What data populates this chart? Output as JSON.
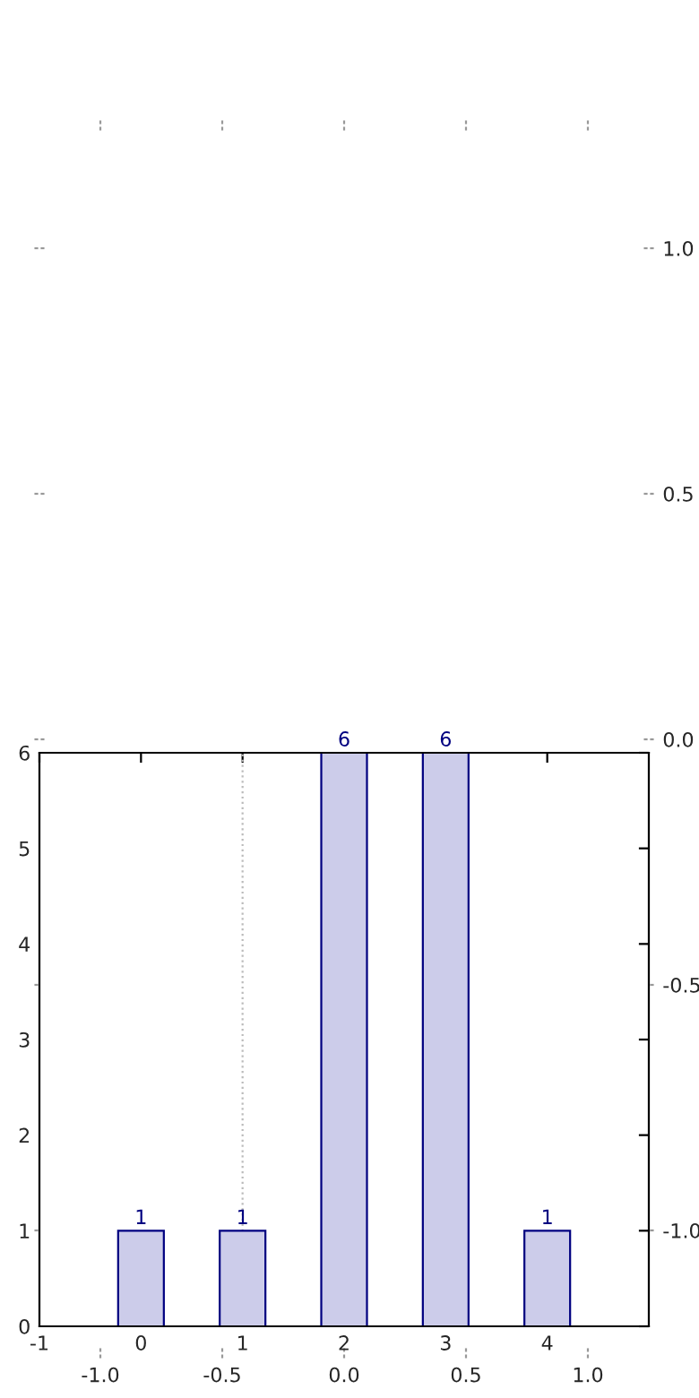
{
  "chart_data": [
    {
      "type": "scatter",
      "xlim": [
        -1.25,
        1.25
      ],
      "ylim": [
        -1.25,
        1.25
      ],
      "xticks": [
        {
          "value": -1.0,
          "label": "-1.0"
        },
        -0.5,
        {
          "value": 0.0,
          "label": "0.0"
        },
        0.5,
        {
          "value": 1.0,
          "label": "1.0"
        }
      ],
      "yticks": [
        {
          "value": -1.0,
          "label": "-1.0"
        },
        -0.5,
        {
          "value": 0.0,
          "label": "0.0"
        },
        0.5,
        {
          "value": 1.0,
          "label": "1.0"
        }
      ]
    },
    {
      "type": "bar",
      "x": [
        0,
        1,
        2,
        3,
        4
      ],
      "values": [
        1,
        1,
        6,
        6,
        1
      ],
      "color": "#ccccea",
      "data_labels": true,
      "xlim": [
        -1,
        5
      ],
      "ylim": [
        0,
        6
      ],
      "xticks": [
        -1,
        0,
        1,
        2,
        3,
        4
      ],
      "yticks": [
        0,
        1,
        2,
        3,
        4,
        5,
        6
      ],
      "ref_lines": [
        {
          "axis": "x",
          "value": 1,
          "color": "#bbbbbb",
          "line_style": "dotted"
        }
      ]
    }
  ]
}
